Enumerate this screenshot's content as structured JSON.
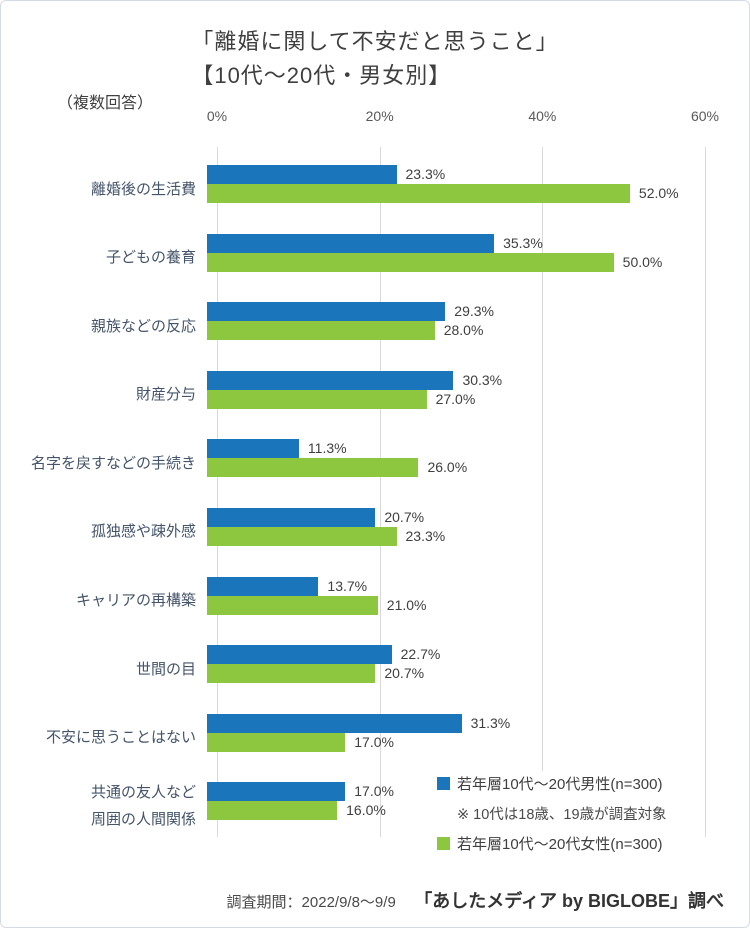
{
  "page": {
    "title_line1": "「離婚に関して不安だと思うこと」",
    "title_line2": "【10代～20代・男女別】",
    "note_multiple_answers": "（複数回答）"
  },
  "chart_data": {
    "type": "bar",
    "orientation": "horizontal",
    "title": "「離婚に関して不安だと思うこと」【10代～20代・男女別】",
    "categories": [
      "離婚後の生活費",
      "子どもの養育",
      "親族などの反応",
      "財産分与",
      "名字を戻すなどの手続き",
      "孤独感や疎外感",
      "キャリアの再構築",
      "世間の目",
      "不安に思うことはない",
      "共通の友人など\n周囲の人間関係"
    ],
    "series": [
      {
        "name": "若年層10代～20代男性(n=300)",
        "color": "#1b75bb",
        "values": [
          23.3,
          35.3,
          29.3,
          30.3,
          11.3,
          20.7,
          13.7,
          22.7,
          31.3,
          17.0
        ]
      },
      {
        "name": "若年層10代～20代女性(n=300)",
        "color": "#8dc63f",
        "values": [
          52.0,
          50.0,
          28.0,
          27.0,
          26.0,
          23.3,
          21.0,
          20.7,
          17.0,
          16.0
        ]
      }
    ],
    "legend_note": "※ 10代は18歳、19歳が調査対象",
    "legend_position": "bottom-right",
    "xlim": [
      0,
      60
    ],
    "x_ticks": [
      {
        "label": "0%",
        "value": 0
      },
      {
        "label": "20%",
        "value": 20
      },
      {
        "label": "40%",
        "value": 40
      },
      {
        "label": "60%",
        "value": 60
      }
    ],
    "grid": true,
    "value_suffix": "%"
  },
  "footer": {
    "survey_period": "調査期間：2022/9/8～9/9",
    "source": "「あしたメディア by BIGLOBE」調べ"
  },
  "colors": {
    "male_bar": "#1b75bb",
    "female_bar": "#8dc63f",
    "gridline": "#d9d9d9",
    "axis_text": "#595959",
    "category_text": "#44546a",
    "value_text": "#3f3f3f"
  }
}
